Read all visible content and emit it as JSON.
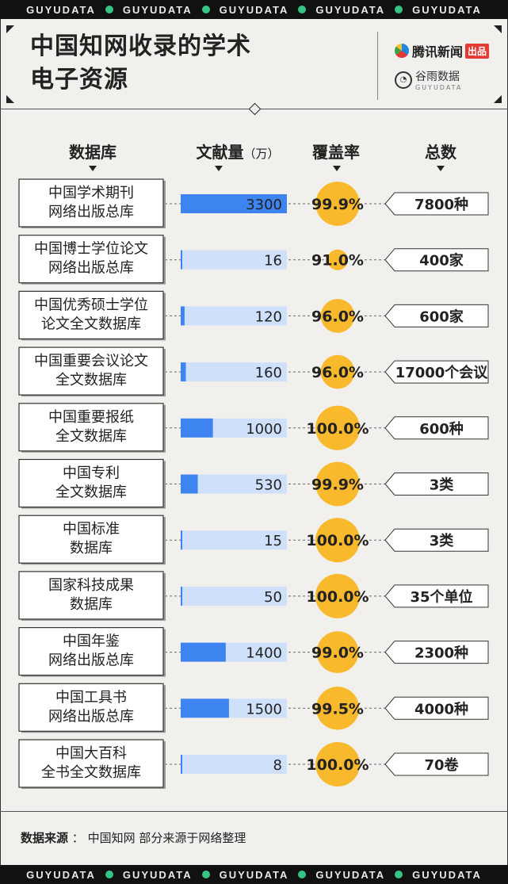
{
  "strip_text": "GUYUDATA",
  "title_line1": "中国知网收录的学术",
  "title_line2": "电子资源",
  "brand": {
    "tencent": "腾讯新闻",
    "tencent_tag": "出品",
    "guyu": "谷雨数据",
    "guyu_sub": "GUYUDATA"
  },
  "headers": {
    "database": "数据库",
    "volume": "文献量",
    "volume_unit": "（万）",
    "coverage": "覆盖率",
    "total": "总数"
  },
  "source": {
    "label": "数据来源",
    "colon": "：",
    "text": "中国知网 部分来源于网络整理"
  },
  "colors": {
    "bar": "#3d84f0",
    "bar_track": "#cfe0fb",
    "bubble": "#f9b92d"
  },
  "chart_data": {
    "type": "bar",
    "value_max": 3300,
    "categories": [
      [
        "中国学术期刊",
        "网络出版总库"
      ],
      [
        "中国博士学位论文",
        "网络出版总库"
      ],
      [
        "中国优秀硕士学位",
        "论文全文数据库"
      ],
      [
        "中国重要会议论文",
        "全文数据库"
      ],
      [
        "中国重要报纸",
        "全文数据库"
      ],
      [
        "中国专利",
        "全文数据库"
      ],
      [
        "中国标准",
        "数据库"
      ],
      [
        "国家科技成果",
        "数据库"
      ],
      [
        "中国年鉴",
        "网络出版总库"
      ],
      [
        "中国工具书",
        "网络出版总库"
      ],
      [
        "中国大百科",
        "全书全文数据库"
      ]
    ],
    "values": [
      3300,
      16,
      120,
      160,
      1000,
      530,
      15,
      50,
      1400,
      1500,
      8
    ],
    "coverage": [
      99.9,
      91.0,
      96.0,
      96.0,
      100.0,
      99.9,
      100.0,
      100.0,
      99.0,
      99.5,
      100.0
    ],
    "coverage_labels": [
      "99.9%",
      "91.0%",
      "96.0%",
      "96.0%",
      "100.0%",
      "99.9%",
      "100.0%",
      "100.0%",
      "99.0%",
      "99.5%",
      "100.0%"
    ],
    "totals": [
      "7800种",
      "400家",
      "600家",
      "17000个会议",
      "600种",
      "3类",
      "3类",
      "35个单位",
      "2300种",
      "4000种",
      "70卷"
    ]
  }
}
